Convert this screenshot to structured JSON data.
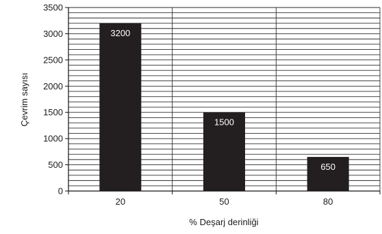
{
  "chart_data": {
    "type": "bar",
    "title": "",
    "xlabel": "% Deşarj derinliği",
    "ylabel": "Çevrim sayısı",
    "categories": [
      "20",
      "50",
      "80"
    ],
    "values": [
      3200,
      1500,
      650
    ],
    "data_labels": [
      "3200",
      "1500",
      "650"
    ],
    "ylim": [
      0,
      3500
    ],
    "yticks": [
      0,
      500,
      1000,
      1500,
      2000,
      2500,
      3000,
      3500
    ],
    "minor_grid_step": 100,
    "grid": true,
    "legend": "none",
    "bar_color": "#231f20",
    "label_color": "#ffffff"
  }
}
